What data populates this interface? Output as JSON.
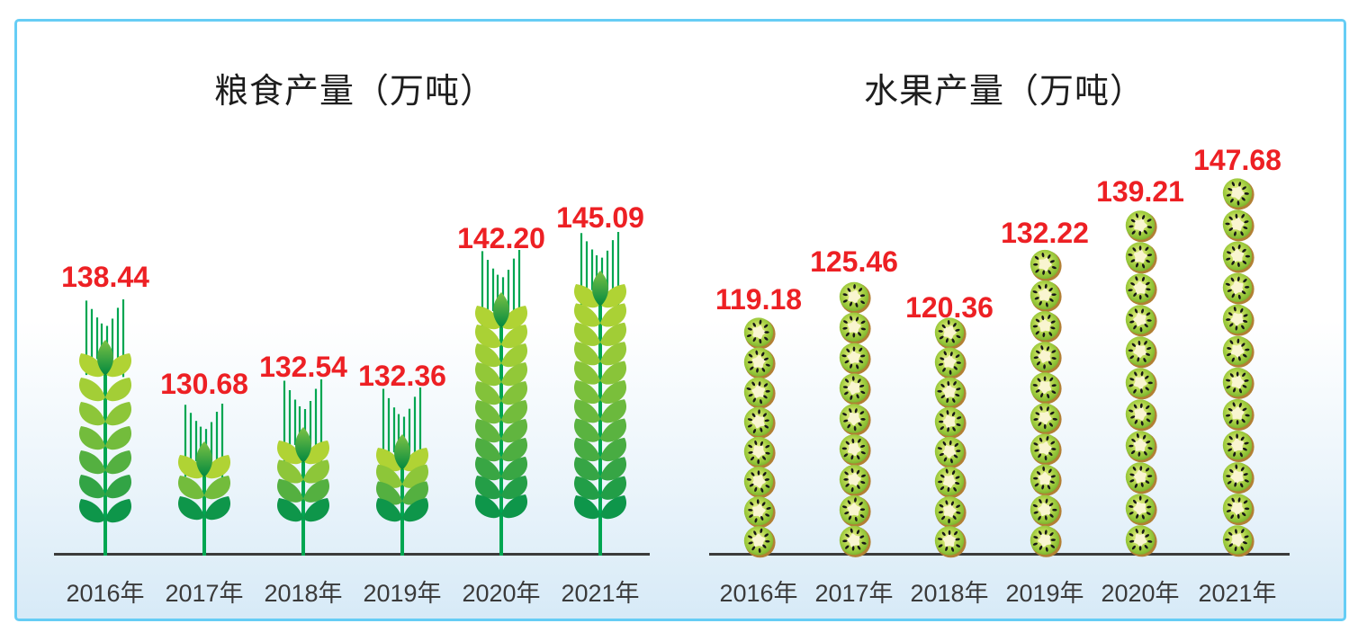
{
  "frame": {
    "border_color": "#66cdf5",
    "background_top": "#ffffff",
    "background_bottom": "#d7eaf7"
  },
  "colors": {
    "value_label_red": "#ed2024",
    "axis_line": "#3b3b3b",
    "year_label": "#3a3a3a",
    "title_text": "#1d1d1d",
    "wheat_stem_green": "#00a651",
    "wheat_leaf_light": "#b0d334",
    "wheat_leaf_dark": "#0e964a",
    "kiwi_skin_brown": "#b28034",
    "kiwi_flesh_green": "#9cca3e",
    "kiwi_core_cream": "#f9f5d0",
    "kiwi_seed_black": "#171717"
  },
  "chart_data": [
    {
      "type": "bar",
      "subtype": "pictograph",
      "icon": "wheat-stalk-icon",
      "title": "粮食产量（万吨）",
      "unit": "万吨",
      "categories": [
        "2016年",
        "2017年",
        "2018年",
        "2019年",
        "2020年",
        "2021年"
      ],
      "values": [
        138.44,
        130.68,
        132.54,
        132.36,
        142.2,
        145.09
      ],
      "value_labels": [
        "138.44",
        "130.68",
        "132.54",
        "132.36",
        "142.20",
        "145.09"
      ],
      "icon_counts_leaf_pairs": [
        7,
        3,
        4,
        4,
        11,
        12
      ],
      "grid": false,
      "legend": "none"
    },
    {
      "type": "bar",
      "subtype": "pictograph",
      "icon": "kiwi-slice-icon",
      "title": "水果产量（万吨）",
      "unit": "万吨",
      "categories": [
        "2016年",
        "2017年",
        "2018年",
        "2019年",
        "2020年",
        "2021年"
      ],
      "values": [
        119.18,
        125.46,
        120.36,
        132.22,
        139.21,
        147.68
      ],
      "value_labels": [
        "119.18",
        "125.46",
        "120.36",
        "132.22",
        "139.21",
        "147.68"
      ],
      "icon_counts_kiwis": [
        8,
        9,
        8,
        10,
        11,
        12
      ],
      "grid": false,
      "legend": "none"
    }
  ]
}
